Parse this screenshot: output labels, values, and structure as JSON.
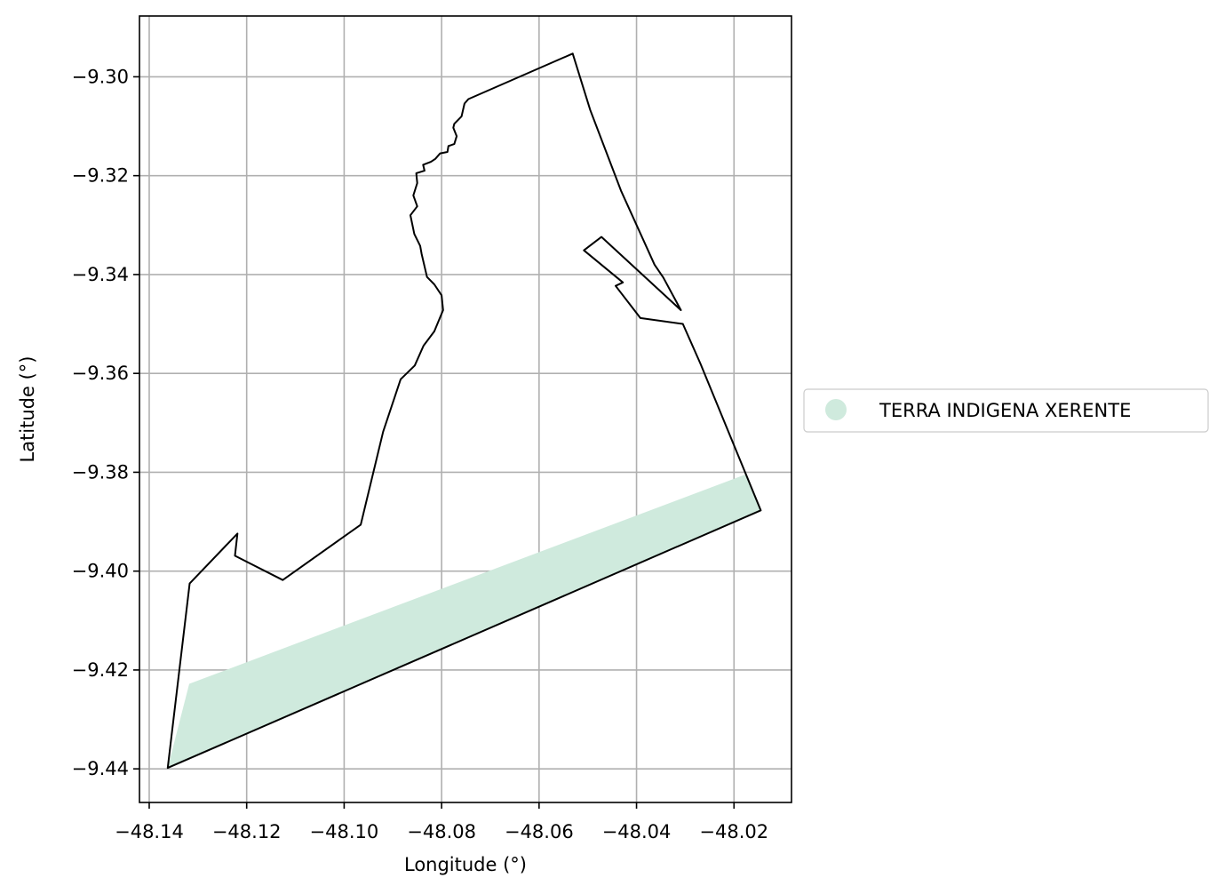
{
  "chart_data": {
    "type": "map",
    "xlabel": "Longitude (°)",
    "ylabel": "Latitude (°)",
    "xlim": [
      -48.142,
      -48.0082
    ],
    "ylim": [
      -9.4468,
      -9.2877
    ],
    "xticks": [
      -48.14,
      -48.12,
      -48.1,
      -48.08,
      -48.06,
      -48.04,
      -48.02
    ],
    "xtick_labels": [
      "−48.14",
      "−48.12",
      "−48.10",
      "−48.08",
      "−48.06",
      "−48.04",
      "−48.02"
    ],
    "yticks": [
      -9.3,
      -9.32,
      -9.34,
      -9.36,
      -9.38,
      -9.4,
      -9.42,
      -9.44
    ],
    "ytick_labels": [
      "−9.30",
      "−9.32",
      "−9.34",
      "−9.36",
      "−9.38",
      "−9.40",
      "−9.42",
      "−9.44"
    ],
    "grid": true,
    "legend": {
      "placement": "center-right outside",
      "entries": [
        {
          "label": "TERRA INDIGENA XERENTE",
          "color": "#cfeadd",
          "marker": "circle"
        }
      ]
    },
    "colors": {
      "fill": "#cfeadd",
      "outline": "#000000",
      "grid": "#b0b0b0"
    },
    "boundary": [
      [
        -48.0531,
        -9.2953
      ],
      [
        -48.0495,
        -9.3067
      ],
      [
        -48.0432,
        -9.323
      ],
      [
        -48.0363,
        -9.338
      ],
      [
        -48.0345,
        -9.3406
      ],
      [
        -48.0309,
        -9.3472
      ],
      [
        -48.0472,
        -9.3324
      ],
      [
        -48.0508,
        -9.3351
      ],
      [
        -48.0428,
        -9.3416
      ],
      [
        -48.0443,
        -9.3423
      ],
      [
        -48.0392,
        -9.3488
      ],
      [
        -48.0305,
        -9.35
      ],
      [
        -48.0269,
        -9.358
      ],
      [
        -48.0145,
        -9.3877
      ],
      [
        -48.1362,
        -9.4398
      ],
      [
        -48.1317,
        -9.4025
      ],
      [
        -48.1219,
        -9.3924
      ],
      [
        -48.1224,
        -9.3969
      ],
      [
        -48.1126,
        -9.4018
      ],
      [
        -48.0966,
        -9.3906
      ],
      [
        -48.092,
        -9.3718
      ],
      [
        -48.0884,
        -9.3612
      ],
      [
        -48.0855,
        -9.3584
      ],
      [
        -48.0837,
        -9.3544
      ],
      [
        -48.0815,
        -9.3515
      ],
      [
        -48.0797,
        -9.3472
      ],
      [
        -48.08,
        -9.3442
      ],
      [
        -48.0815,
        -9.342
      ],
      [
        -48.083,
        -9.3405
      ],
      [
        -48.0841,
        -9.3358
      ],
      [
        -48.0844,
        -9.3342
      ],
      [
        -48.0856,
        -9.3318
      ],
      [
        -48.0864,
        -9.328
      ],
      [
        -48.085,
        -9.3262
      ],
      [
        -48.0858,
        -9.324
      ],
      [
        -48.085,
        -9.3215
      ],
      [
        -48.0852,
        -9.3195
      ],
      [
        -48.0835,
        -9.319
      ],
      [
        -48.0838,
        -9.3178
      ],
      [
        -48.0822,
        -9.3172
      ],
      [
        -48.0813,
        -9.3166
      ],
      [
        -48.0803,
        -9.3155
      ],
      [
        -48.0788,
        -9.3152
      ],
      [
        -48.0786,
        -9.314
      ],
      [
        -48.0774,
        -9.3136
      ],
      [
        -48.0769,
        -9.312
      ],
      [
        -48.0776,
        -9.3103
      ],
      [
        -48.0774,
        -9.3095
      ],
      [
        -48.0759,
        -9.308
      ],
      [
        -48.0753,
        -9.3054
      ],
      [
        -48.0745,
        -9.3045
      ],
      [
        -48.0531,
        -9.2953
      ]
    ],
    "shaded_band": [
      [
        -48.1362,
        -9.4398
      ],
      [
        -48.0145,
        -9.3877
      ],
      [
        -48.0175,
        -9.3804
      ],
      [
        -48.1318,
        -9.4228
      ]
    ]
  }
}
